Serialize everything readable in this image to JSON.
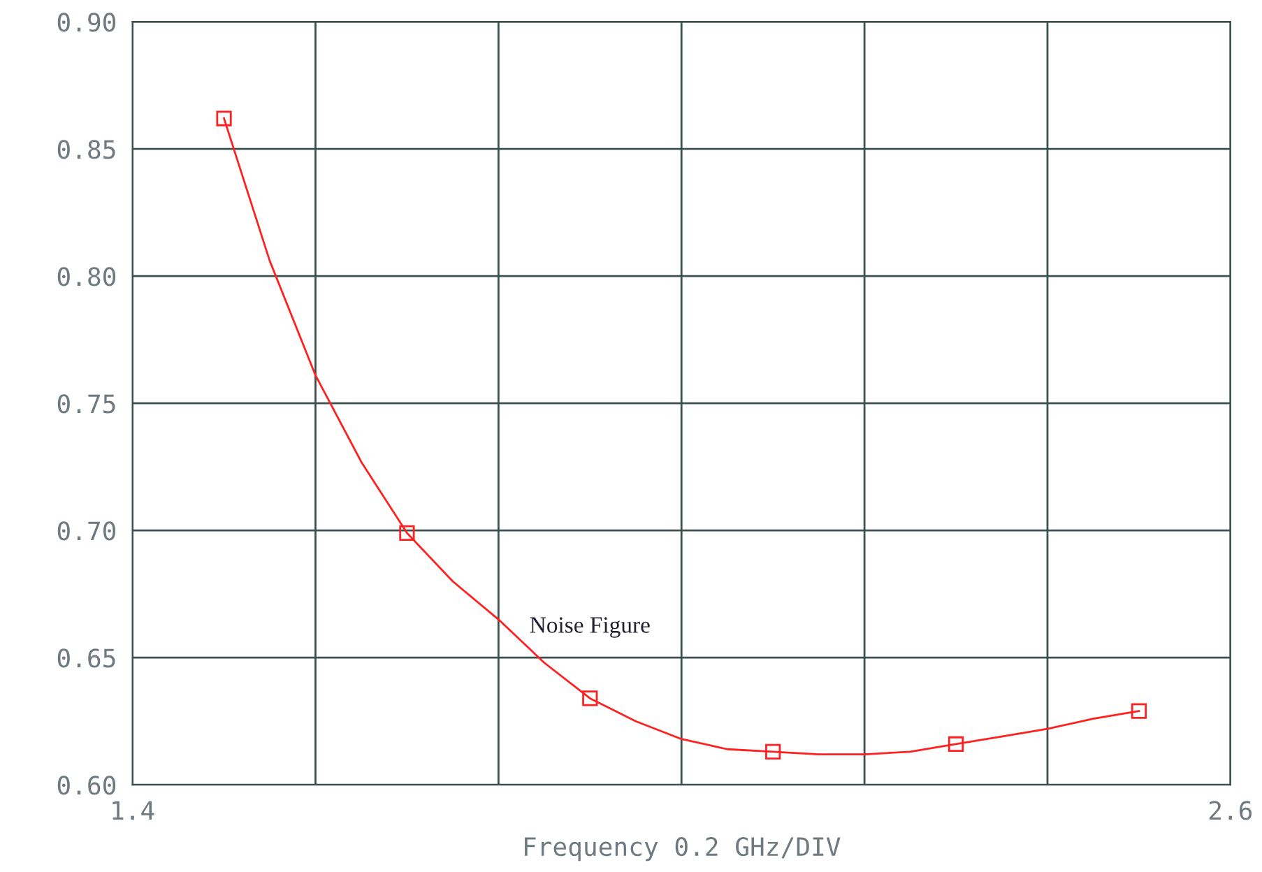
{
  "chart_data": {
    "type": "line",
    "xlabel": "Frequency 0.2 GHz/DIV",
    "series": [
      {
        "name": "Noise Figure",
        "color": "#ff2020",
        "x": [
          1.5,
          1.55,
          1.6,
          1.65,
          1.7,
          1.75,
          1.8,
          1.85,
          1.9,
          1.95,
          2.0,
          2.05,
          2.1,
          2.15,
          2.2,
          2.25,
          2.3,
          2.35,
          2.4,
          2.45,
          2.5
        ],
        "values": [
          0.862,
          0.806,
          0.761,
          0.727,
          0.699,
          0.68,
          0.665,
          0.648,
          0.634,
          0.625,
          0.618,
          0.614,
          0.613,
          0.612,
          0.612,
          0.613,
          0.616,
          0.619,
          0.622,
          0.626,
          0.629
        ]
      },
      {
        "type": "scatter",
        "marker": "square",
        "color": "#ff2020",
        "x": [
          1.5,
          1.7,
          1.9,
          2.1,
          2.3,
          2.5
        ],
        "values": [
          0.862,
          0.699,
          0.634,
          0.613,
          0.616,
          0.629
        ]
      }
    ],
    "xlim": [
      1.4,
      2.6
    ],
    "xticks": [
      1.4,
      {
        "value": 1.6,
        "label": null
      },
      {
        "value": 1.8,
        "label": null
      },
      {
        "value": 2.0,
        "label": null
      },
      {
        "value": 2.2,
        "label": null
      },
      {
        "value": 2.4,
        "label": null
      },
      2.6
    ],
    "ylim": [
      0.6,
      0.9
    ],
    "yticks": [
      {
        "value": 0.6,
        "label": "0.60"
      },
      {
        "value": 0.65,
        "label": "0.65"
      },
      {
        "value": 0.7,
        "label": "0.70"
      },
      {
        "value": 0.75,
        "label": "0.75"
      },
      {
        "value": 0.8,
        "label": "0.80"
      },
      {
        "value": 0.85,
        "label": "0.85"
      },
      {
        "value": 0.9,
        "label": "0.90"
      }
    ],
    "grid": true,
    "legend": false,
    "line_style": "solid"
  }
}
